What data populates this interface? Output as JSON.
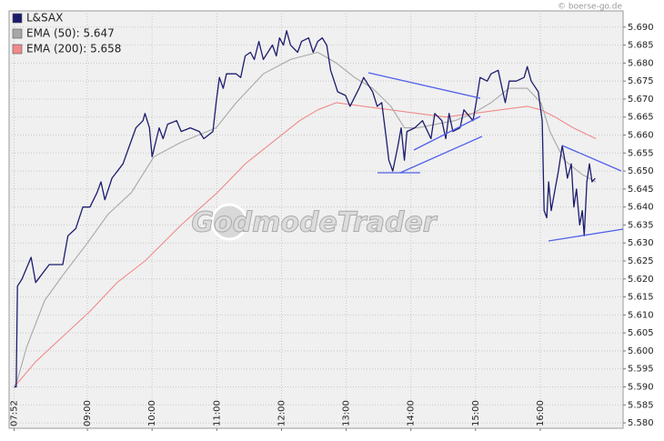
{
  "chart_data": {
    "type": "line",
    "source": "© boerse-go.de",
    "watermark": "GodmodeTrader",
    "grid": true,
    "legend": "upper left",
    "xlim": [
      7.79,
      17.28
    ],
    "ylim": [
      5.5785,
      5.6945
    ],
    "xticks": [
      {
        "value": 7.8667,
        "label": "07:52"
      },
      {
        "value": 9,
        "label": "09:00"
      },
      {
        "value": 10,
        "label": "10:00"
      },
      {
        "value": 11,
        "label": "11:00"
      },
      {
        "value": 12,
        "label": "12:00"
      },
      {
        "value": 13,
        "label": "13:00"
      },
      {
        "value": 14,
        "label": "14:00"
      },
      {
        "value": 15,
        "label": "15:00"
      },
      {
        "value": 16,
        "label": "16:00"
      }
    ],
    "yticks": [
      {
        "value": 5.58,
        "label": "5.580"
      },
      {
        "value": 5.585,
        "label": "5.585"
      },
      {
        "value": 5.59,
        "label": "5.590"
      },
      {
        "value": 5.595,
        "label": "5.595"
      },
      {
        "value": 5.6,
        "label": "5.600"
      },
      {
        "value": 5.605,
        "label": "5.605"
      },
      {
        "value": 5.61,
        "label": "5.610"
      },
      {
        "value": 5.615,
        "label": "5.615"
      },
      {
        "value": 5.62,
        "label": "5.620"
      },
      {
        "value": 5.625,
        "label": "5.625"
      },
      {
        "value": 5.63,
        "label": "5.630"
      },
      {
        "value": 5.635,
        "label": "5.635"
      },
      {
        "value": 5.64,
        "label": "5.640"
      },
      {
        "value": 5.645,
        "label": "5.645"
      },
      {
        "value": 5.65,
        "label": "5.650"
      },
      {
        "value": 5.655,
        "label": "5.655"
      },
      {
        "value": 5.66,
        "label": "5.660"
      },
      {
        "value": 5.665,
        "label": "5.665"
      },
      {
        "value": 5.67,
        "label": "5.670"
      },
      {
        "value": 5.675,
        "label": "5.675"
      },
      {
        "value": 5.68,
        "label": "5.680"
      },
      {
        "value": 5.685,
        "label": "5.685"
      },
      {
        "value": 5.69,
        "label": "5.690"
      }
    ],
    "series": [
      {
        "name": "EMA (200): 5.658",
        "color": "#f08a8a",
        "x": [
          7.87,
          8.2,
          8.62,
          9.04,
          9.46,
          9.89,
          10.45,
          11.01,
          11.44,
          11.86,
          12.28,
          12.56,
          12.85,
          13.27,
          13.69,
          14.11,
          14.54,
          14.96,
          15.38,
          15.8,
          16.01,
          16.23,
          16.51,
          16.86
        ],
        "values": [
          5.59,
          5.597,
          5.604,
          5.611,
          5.619,
          5.625,
          5.635,
          5.644,
          5.652,
          5.658,
          5.664,
          5.667,
          5.669,
          5.668,
          5.667,
          5.666,
          5.665,
          5.666,
          5.667,
          5.668,
          5.667,
          5.665,
          5.662,
          5.659
        ]
      },
      {
        "name": "EMA (50): 5.647",
        "color": "#a8a8a8",
        "x": [
          7.87,
          7.92,
          8.06,
          8.34,
          8.62,
          9.0,
          9.32,
          9.68,
          10.03,
          10.45,
          10.99,
          11.3,
          11.72,
          12.14,
          12.56,
          12.85,
          13.13,
          13.41,
          13.69,
          13.9,
          14.11,
          14.39,
          14.68,
          14.96,
          15.24,
          15.52,
          15.8,
          16.01,
          16.15,
          16.37,
          16.65,
          16.86
        ],
        "values": [
          5.59,
          5.592,
          5.601,
          5.614,
          5.621,
          5.63,
          5.638,
          5.644,
          5.654,
          5.658,
          5.662,
          5.669,
          5.677,
          5.681,
          5.683,
          5.68,
          5.676,
          5.673,
          5.668,
          5.662,
          5.662,
          5.663,
          5.664,
          5.666,
          5.669,
          5.673,
          5.673,
          5.669,
          5.661,
          5.653,
          5.649,
          5.647
        ]
      },
      {
        "name": "L&SAX",
        "color": "#1c1c6e",
        "x": [
          7.87,
          7.9,
          7.92,
          7.99,
          8.13,
          8.2,
          8.41,
          8.62,
          8.7,
          8.82,
          8.93,
          9.04,
          9.15,
          9.21,
          9.27,
          9.38,
          9.55,
          9.65,
          9.75,
          9.86,
          9.89,
          9.96,
          10.0,
          10.11,
          10.17,
          10.24,
          10.38,
          10.45,
          10.59,
          10.73,
          10.8,
          10.94,
          10.99,
          11.04,
          11.1,
          11.15,
          11.3,
          11.37,
          11.44,
          11.52,
          11.58,
          11.65,
          11.72,
          11.86,
          11.92,
          11.97,
          12.03,
          12.08,
          12.14,
          12.25,
          12.31,
          12.42,
          12.49,
          12.56,
          12.63,
          12.7,
          12.76,
          12.87,
          12.99,
          13.06,
          13.2,
          13.27,
          13.41,
          13.48,
          13.55,
          13.62,
          13.66,
          13.72,
          13.8,
          13.85,
          13.9,
          13.94,
          14.06,
          14.18,
          14.31,
          14.37,
          14.48,
          14.54,
          14.59,
          14.65,
          14.76,
          14.82,
          14.96,
          15.01,
          15.07,
          15.18,
          15.24,
          15.35,
          15.41,
          15.46,
          15.52,
          15.63,
          15.75,
          15.8,
          15.86,
          15.97,
          16.03,
          16.06,
          16.1,
          16.13,
          16.17,
          16.28,
          16.34,
          16.38,
          16.42,
          16.48,
          16.52,
          16.56,
          16.61,
          16.65,
          16.68,
          16.72,
          16.76,
          16.8,
          16.85
        ],
        "values": [
          5.59,
          5.59,
          5.618,
          5.62,
          5.626,
          5.619,
          5.624,
          5.624,
          5.632,
          5.634,
          5.64,
          5.64,
          5.644,
          5.647,
          5.642,
          5.648,
          5.652,
          5.657,
          5.662,
          5.664,
          5.666,
          5.662,
          5.654,
          5.662,
          5.659,
          5.663,
          5.664,
          5.661,
          5.662,
          5.661,
          5.659,
          5.661,
          5.669,
          5.676,
          5.673,
          5.677,
          5.677,
          5.676,
          5.682,
          5.683,
          5.681,
          5.686,
          5.681,
          5.685,
          5.682,
          5.687,
          5.685,
          5.689,
          5.685,
          5.683,
          5.686,
          5.687,
          5.683,
          5.686,
          5.687,
          5.685,
          5.678,
          5.672,
          5.671,
          5.668,
          5.673,
          5.676,
          5.672,
          5.668,
          5.669,
          5.659,
          5.653,
          5.65,
          5.657,
          5.662,
          5.653,
          5.661,
          5.662,
          5.664,
          5.659,
          5.666,
          5.664,
          5.659,
          5.666,
          5.661,
          5.662,
          5.667,
          5.664,
          5.669,
          5.676,
          5.675,
          5.677,
          5.678,
          5.673,
          5.669,
          5.675,
          5.675,
          5.676,
          5.679,
          5.675,
          5.672,
          5.664,
          5.639,
          5.637,
          5.647,
          5.639,
          5.65,
          5.657,
          5.653,
          5.648,
          5.652,
          5.64,
          5.645,
          5.635,
          5.639,
          5.632,
          5.647,
          5.652,
          5.647,
          5.648
        ]
      }
    ]
  }
}
